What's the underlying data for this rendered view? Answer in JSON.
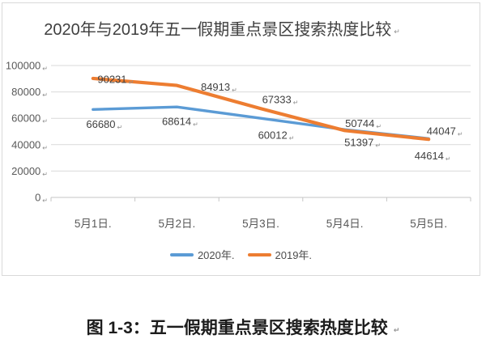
{
  "word_marks": {
    "return": "↵",
    "period": "."
  },
  "chart": {
    "title": "2020年与2019年五一假期重点景区搜索热度比较",
    "colors": {
      "series_2020": "#5B9BD5",
      "series_2019": "#ED7D31",
      "gridline": "#d9d9d9",
      "axis_line": "#c6c6c6",
      "tick_text": "#595959",
      "data_label_text": "#404040",
      "border": "#d9d9d9"
    }
  },
  "chart_data": {
    "type": "line",
    "title": "2020年与2019年五一假期重点景区搜索热度比较",
    "categories": [
      "5月1日",
      "5月2日",
      "5月3日",
      "5月4日",
      "5月5日"
    ],
    "series": [
      {
        "name": "2020年",
        "color": "#5B9BD5",
        "values": [
          66680,
          68614,
          60012,
          51397,
          44614
        ]
      },
      {
        "name": "2019年",
        "color": "#ED7D31",
        "values": [
          90231,
          84913,
          67333,
          50744,
          44047
        ]
      }
    ],
    "xlabel": "",
    "ylabel": "",
    "ylim": [
      0,
      100000
    ],
    "ytick_step": 20000,
    "ytick_labels": [
      "0",
      "20000",
      "40000",
      "60000",
      "80000",
      "100000"
    ],
    "grid": true,
    "data_labels": true,
    "legend_position": "bottom"
  },
  "caption": "图 1-3：五一假期重点景区搜索热度比较"
}
